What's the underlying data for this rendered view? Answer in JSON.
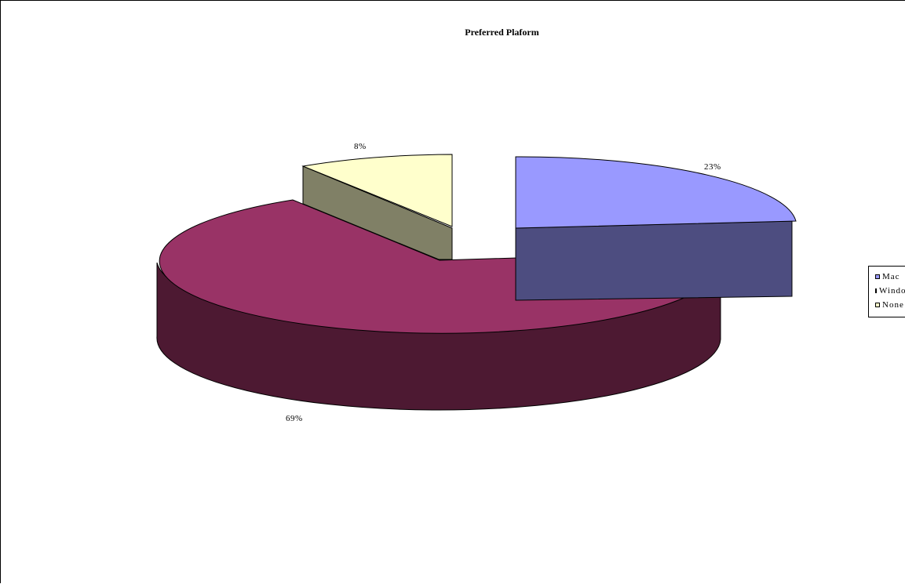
{
  "chart_data": {
    "type": "pie",
    "title": "Preferred Plaform",
    "categories": [
      "Mac",
      "Windows",
      "None"
    ],
    "values": [
      23,
      69,
      8
    ],
    "data_labels": [
      "23%",
      "69%",
      "8%"
    ],
    "colors": {
      "Mac": "#9999ff",
      "Windows": "#993366",
      "None": "#ffffcc"
    },
    "legend": {
      "position": "right",
      "entries": [
        "Mac",
        "Windows",
        "None"
      ]
    },
    "style": "3d-exploded"
  }
}
